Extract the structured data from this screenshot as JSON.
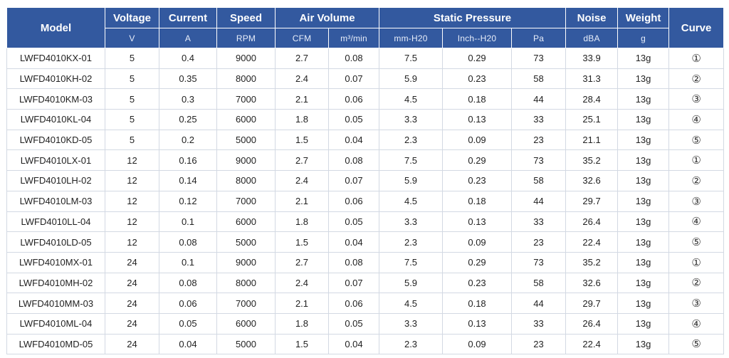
{
  "header": {
    "model": "Model",
    "voltage": "Voltage",
    "current": "Current",
    "speed": "Speed",
    "air_volume": "Air Volume",
    "static_pressure": "Static Pressure",
    "noise": "Noise",
    "weight": "Weight",
    "curve": "Curve",
    "units": {
      "voltage": "V",
      "current": "A",
      "speed": "RPM",
      "cfm": "CFM",
      "m3min": "m³/min",
      "mmh20": "mm-H20",
      "inchh20": "Inch--H20",
      "pa": "Pa",
      "dba": "dBA",
      "g": "g"
    }
  },
  "rows": [
    [
      "LWFD4010KX-01",
      "5",
      "0.4",
      "9000",
      "2.7",
      "0.08",
      "7.5",
      "0.29",
      "73",
      "33.9",
      "13g",
      "①"
    ],
    [
      "LWFD4010KH-02",
      "5",
      "0.35",
      "8000",
      "2.4",
      "0.07",
      "5.9",
      "0.23",
      "58",
      "31.3",
      "13g",
      "②"
    ],
    [
      "LWFD4010KM-03",
      "5",
      "0.3",
      "7000",
      "2.1",
      "0.06",
      "4.5",
      "0.18",
      "44",
      "28.4",
      "13g",
      "③"
    ],
    [
      "LWFD4010KL-04",
      "5",
      "0.25",
      "6000",
      "1.8",
      "0.05",
      "3.3",
      "0.13",
      "33",
      "25.1",
      "13g",
      "④"
    ],
    [
      "LWFD4010KD-05",
      "5",
      "0.2",
      "5000",
      "1.5",
      "0.04",
      "2.3",
      "0.09",
      "23",
      "21.1",
      "13g",
      "⑤"
    ],
    [
      "LWFD4010LX-01",
      "12",
      "0.16",
      "9000",
      "2.7",
      "0.08",
      "7.5",
      "0.29",
      "73",
      "35.2",
      "13g",
      "①"
    ],
    [
      "LWFD4010LH-02",
      "12",
      "0.14",
      "8000",
      "2.4",
      "0.07",
      "5.9",
      "0.23",
      "58",
      "32.6",
      "13g",
      "②"
    ],
    [
      "LWFD4010LM-03",
      "12",
      "0.12",
      "7000",
      "2.1",
      "0.06",
      "4.5",
      "0.18",
      "44",
      "29.7",
      "13g",
      "③"
    ],
    [
      "LWFD4010LL-04",
      "12",
      "0.1",
      "6000",
      "1.8",
      "0.05",
      "3.3",
      "0.13",
      "33",
      "26.4",
      "13g",
      "④"
    ],
    [
      "LWFD4010LD-05",
      "12",
      "0.08",
      "5000",
      "1.5",
      "0.04",
      "2.3",
      "0.09",
      "23",
      "22.4",
      "13g",
      "⑤"
    ],
    [
      "LWFD4010MX-01",
      "24",
      "0.1",
      "9000",
      "2.7",
      "0.08",
      "7.5",
      "0.29",
      "73",
      "35.2",
      "13g",
      "①"
    ],
    [
      "LWFD4010MH-02",
      "24",
      "0.08",
      "8000",
      "2.4",
      "0.07",
      "5.9",
      "0.23",
      "58",
      "32.6",
      "13g",
      "②"
    ],
    [
      "LWFD4010MM-03",
      "24",
      "0.06",
      "7000",
      "2.1",
      "0.06",
      "4.5",
      "0.18",
      "44",
      "29.7",
      "13g",
      "③"
    ],
    [
      "LWFD4010ML-04",
      "24",
      "0.05",
      "6000",
      "1.8",
      "0.05",
      "3.3",
      "0.13",
      "33",
      "26.4",
      "13g",
      "④"
    ],
    [
      "LWFD4010MD-05",
      "24",
      "0.04",
      "5000",
      "1.5",
      "0.04",
      "2.3",
      "0.09",
      "23",
      "22.4",
      "13g",
      "⑤"
    ]
  ],
  "colors": {
    "header_bg": "#33599f",
    "header_text": "#ffffff",
    "grid": "#d3d9e3",
    "body_text": "#222222"
  }
}
